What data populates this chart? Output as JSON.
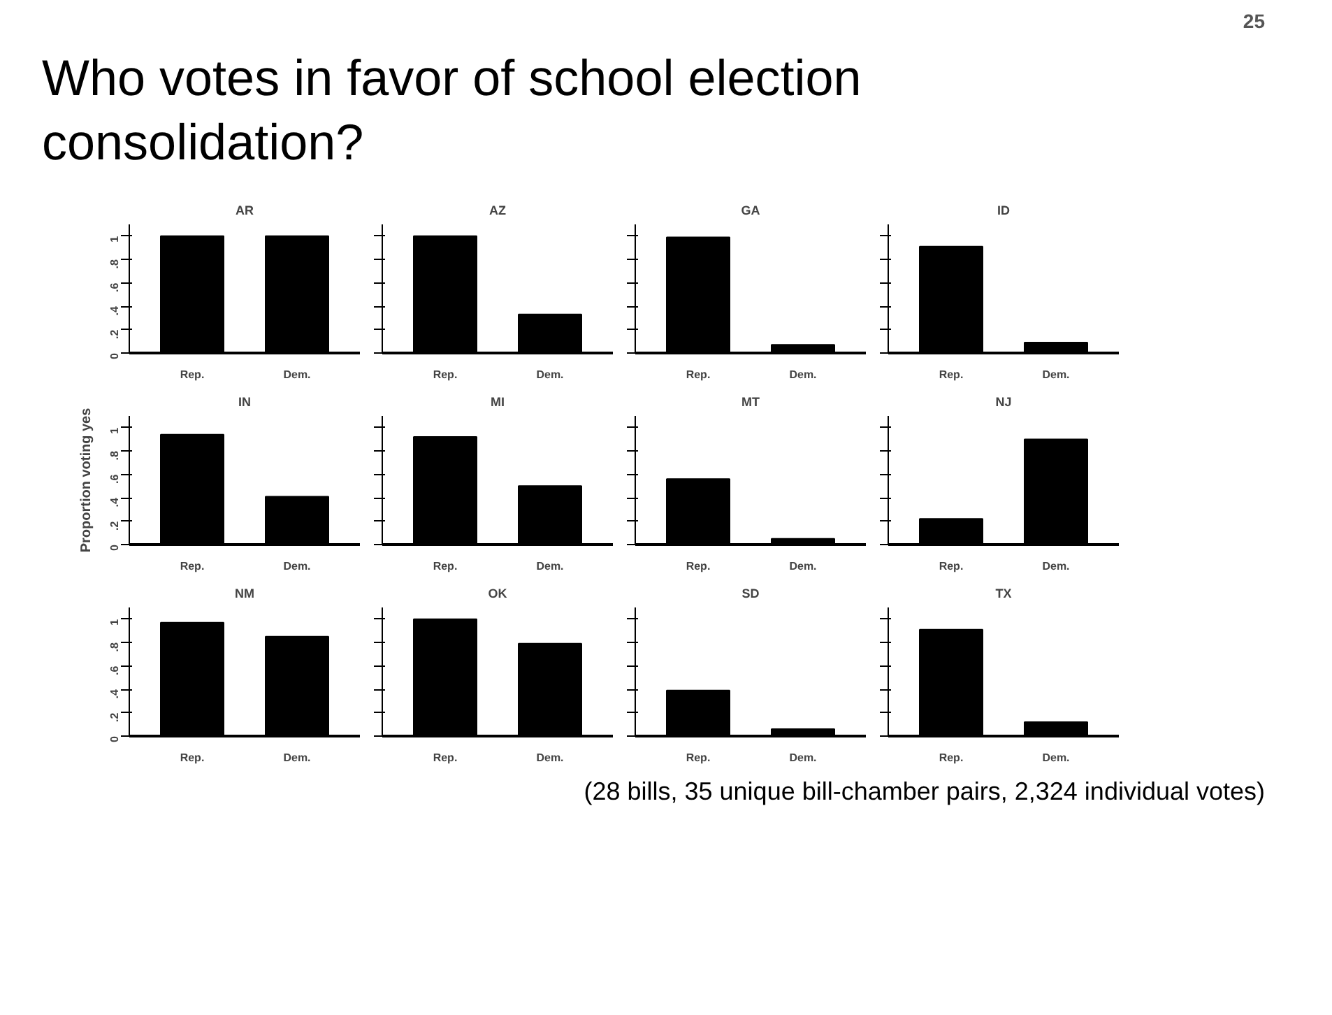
{
  "chart_data": [
    {
      "type": "bar",
      "title": "AR",
      "categories": [
        "Rep.",
        "Dem."
      ],
      "values": [
        1.0,
        1.0
      ],
      "color": "#000000",
      "ylim": [
        0,
        1.1
      ],
      "yticks": [
        0,
        {
          "value": 0.2,
          "label": ".2"
        },
        {
          "value": 0.4,
          "label": ".4"
        },
        {
          "value": 0.6,
          "label": ".6"
        },
        {
          "value": 0.8,
          "label": ".8"
        },
        1
      ],
      "annotations": [
        "25",
        "Who votes in favor of school election consolidation?"
      ]
    },
    {
      "type": "bar",
      "title": "AZ",
      "categories": [
        "Rep.",
        "Dem."
      ],
      "values": [
        1.0,
        0.33
      ],
      "color": "#000000",
      "ylim": [
        0,
        1.1
      ],
      "yticks": [
        {
          "value": 0,
          "label": null
        },
        {
          "value": 0.2,
          "label": null
        },
        {
          "value": 0.4,
          "label": null
        },
        {
          "value": 0.6,
          "label": null
        },
        {
          "value": 0.8,
          "label": null
        },
        {
          "value": 1,
          "label": null
        }
      ],
      "tick_labels": "x"
    },
    {
      "type": "bar",
      "title": "GA",
      "categories": [
        "Rep.",
        "Dem."
      ],
      "values": [
        0.99,
        0.07
      ],
      "color": "#000000",
      "ylim": [
        0,
        1.1
      ],
      "yticks": [
        {
          "value": 0,
          "label": null
        },
        {
          "value": 0.2,
          "label": null
        },
        {
          "value": 0.4,
          "label": null
        },
        {
          "value": 0.6,
          "label": null
        },
        {
          "value": 0.8,
          "label": null
        },
        {
          "value": 1,
          "label": null
        }
      ],
      "tick_labels": "x"
    },
    {
      "type": "bar",
      "title": "ID",
      "categories": [
        "Rep.",
        "Dem."
      ],
      "values": [
        0.91,
        0.09
      ],
      "color": "#000000",
      "ylim": [
        0,
        1.1
      ],
      "yticks": [
        {
          "value": 0,
          "label": null
        },
        {
          "value": 0.2,
          "label": null
        },
        {
          "value": 0.4,
          "label": null
        },
        {
          "value": 0.6,
          "label": null
        },
        {
          "value": 0.8,
          "label": null
        },
        {
          "value": 1,
          "label": null
        }
      ],
      "tick_labels": "x"
    },
    {
      "type": "bar",
      "title": "IN",
      "categories": [
        "Rep.",
        "Dem."
      ],
      "values": [
        0.94,
        0.41
      ],
      "color": "#000000",
      "ylim": [
        0,
        1.1
      ],
      "yticks": [
        0,
        {
          "value": 0.2,
          "label": ".2"
        },
        {
          "value": 0.4,
          "label": ".4"
        },
        {
          "value": 0.6,
          "label": ".6"
        },
        {
          "value": 0.8,
          "label": ".8"
        },
        1
      ],
      "ylabel": "Proportion voting yes"
    },
    {
      "type": "bar",
      "title": "MI",
      "categories": [
        "Rep.",
        "Dem."
      ],
      "values": [
        0.92,
        0.5
      ],
      "color": "#000000",
      "ylim": [
        0,
        1.1
      ],
      "yticks": [
        {
          "value": 0,
          "label": null
        },
        {
          "value": 0.2,
          "label": null
        },
        {
          "value": 0.4,
          "label": null
        },
        {
          "value": 0.6,
          "label": null
        },
        {
          "value": 0.8,
          "label": null
        },
        {
          "value": 1,
          "label": null
        }
      ],
      "tick_labels": "x"
    },
    {
      "type": "bar",
      "title": "MT",
      "categories": [
        "Rep.",
        "Dem."
      ],
      "values": [
        0.56,
        0.05
      ],
      "color": "#000000",
      "ylim": [
        0,
        1.1
      ],
      "yticks": [
        {
          "value": 0,
          "label": null
        },
        {
          "value": 0.2,
          "label": null
        },
        {
          "value": 0.4,
          "label": null
        },
        {
          "value": 0.6,
          "label": null
        },
        {
          "value": 0.8,
          "label": null
        },
        {
          "value": 1,
          "label": null
        }
      ],
      "tick_labels": "x"
    },
    {
      "type": "bar",
      "title": "NJ",
      "categories": [
        "Rep.",
        "Dem."
      ],
      "values": [
        0.22,
        0.9
      ],
      "color": "#000000",
      "ylim": [
        0,
        1.1
      ],
      "yticks": [
        {
          "value": 0,
          "label": null
        },
        {
          "value": 0.2,
          "label": null
        },
        {
          "value": 0.4,
          "label": null
        },
        {
          "value": 0.6,
          "label": null
        },
        {
          "value": 0.8,
          "label": null
        },
        {
          "value": 1,
          "label": null
        }
      ],
      "tick_labels": "x"
    },
    {
      "type": "bar",
      "title": "NM",
      "categories": [
        "Rep.",
        "Dem."
      ],
      "values": [
        0.97,
        0.85
      ],
      "color": "#000000",
      "ylim": [
        0,
        1.1
      ],
      "yticks": [
        0,
        {
          "value": 0.2,
          "label": ".2"
        },
        {
          "value": 0.4,
          "label": ".4"
        },
        {
          "value": 0.6,
          "label": ".6"
        },
        {
          "value": 0.8,
          "label": ".8"
        },
        1
      ]
    },
    {
      "type": "bar",
      "title": "OK",
      "categories": [
        "Rep.",
        "Dem."
      ],
      "values": [
        1.0,
        0.79
      ],
      "color": "#000000",
      "ylim": [
        0,
        1.1
      ],
      "yticks": [
        {
          "value": 0,
          "label": null
        },
        {
          "value": 0.2,
          "label": null
        },
        {
          "value": 0.4,
          "label": null
        },
        {
          "value": 0.6,
          "label": null
        },
        {
          "value": 0.8,
          "label": null
        },
        {
          "value": 1,
          "label": null
        }
      ],
      "tick_labels": "x"
    },
    {
      "type": "bar",
      "title": "SD",
      "categories": [
        "Rep.",
        "Dem."
      ],
      "values": [
        0.39,
        0.06
      ],
      "color": "#000000",
      "ylim": [
        0,
        1.1
      ],
      "yticks": [
        {
          "value": 0,
          "label": null
        },
        {
          "value": 0.2,
          "label": null
        },
        {
          "value": 0.4,
          "label": null
        },
        {
          "value": 0.6,
          "label": null
        },
        {
          "value": 0.8,
          "label": null
        },
        {
          "value": 1,
          "label": null
        }
      ],
      "tick_labels": "x"
    },
    {
      "type": "bar",
      "title": "TX",
      "categories": [
        "Rep.",
        "Dem."
      ],
      "values": [
        0.91,
        0.12
      ],
      "color": "#000000",
      "ylim": [
        0,
        1.1
      ],
      "yticks": [
        {
          "value": 0,
          "label": null
        },
        {
          "value": 0.2,
          "label": null
        },
        {
          "value": 0.4,
          "label": null
        },
        {
          "value": 0.6,
          "label": null
        },
        {
          "value": 0.8,
          "label": null
        },
        {
          "value": 1,
          "label": null
        }
      ],
      "tick_labels": "x",
      "annotations": [
        "(28 bills, 35 unique bill-chamber pairs, 2,324 individual votes)"
      ]
    }
  ]
}
